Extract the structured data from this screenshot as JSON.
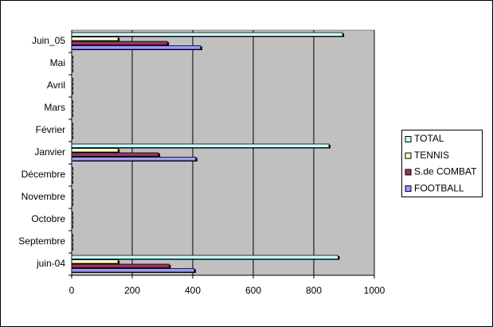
{
  "chart_data": {
    "type": "hbar",
    "categories": [
      "juin-04",
      "Septembre",
      "Octobre",
      "Novembre",
      "Décembre",
      "Janvier",
      "Février",
      "Mars",
      "Avril",
      "Mai",
      "Juin_05"
    ],
    "series": [
      {
        "name": "FOOTBALL",
        "color": "#9999FF",
        "values": [
          405,
          0,
          0,
          0,
          0,
          410,
          0,
          0,
          0,
          0,
          426
        ]
      },
      {
        "name": "S.de COMBAT",
        "color": "#993366",
        "values": [
          322,
          0,
          0,
          0,
          0,
          287,
          0,
          0,
          0,
          0,
          316
        ]
      },
      {
        "name": "TENNIS",
        "color": "#FFFFCC",
        "values": [
          153,
          0,
          0,
          0,
          0,
          153,
          0,
          0,
          0,
          0,
          153
        ]
      },
      {
        "name": "TOTAL",
        "color": "#CCFFFF",
        "values": [
          880,
          0,
          0,
          0,
          0,
          850,
          0,
          0,
          0,
          0,
          895
        ]
      }
    ],
    "xlim": [
      0,
      1000
    ],
    "xticks": [
      0,
      200,
      400,
      600,
      800,
      1000
    ],
    "grid": true,
    "legend": "right"
  }
}
